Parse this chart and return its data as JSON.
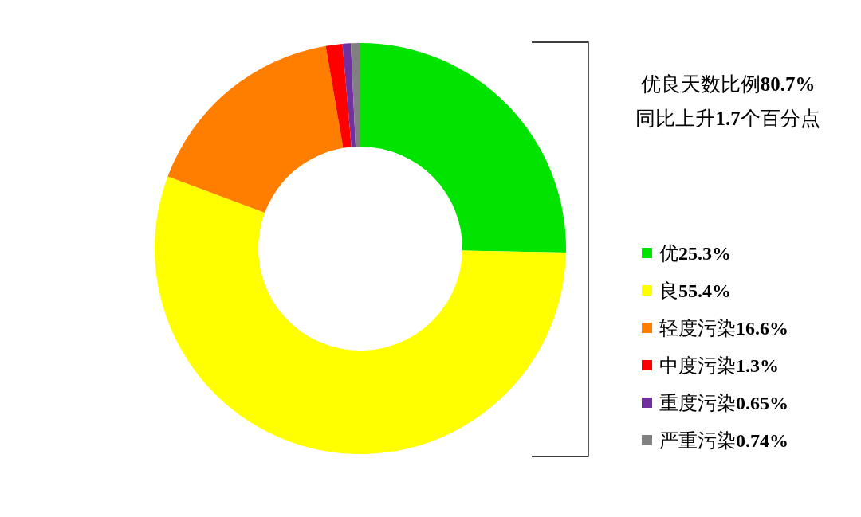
{
  "chart_data": {
    "type": "donut",
    "categories": [
      "优",
      "良",
      "轻度污染",
      "中度污染",
      "重度污染",
      "严重污染"
    ],
    "values": [
      25.3,
      55.4,
      16.6,
      1.3,
      0.65,
      0.74
    ],
    "value_labels": [
      "25.3%",
      "55.4%",
      "16.6%",
      "1.3%",
      "0.65%",
      "0.74%"
    ],
    "colors": [
      "#00e400",
      "#ffff00",
      "#ff7e00",
      "#ff0000",
      "#7030a0",
      "#808080"
    ],
    "annotations": [
      "优良天数比例80.7%",
      "同比上升1.7个百分点"
    ],
    "legend": "right"
  }
}
